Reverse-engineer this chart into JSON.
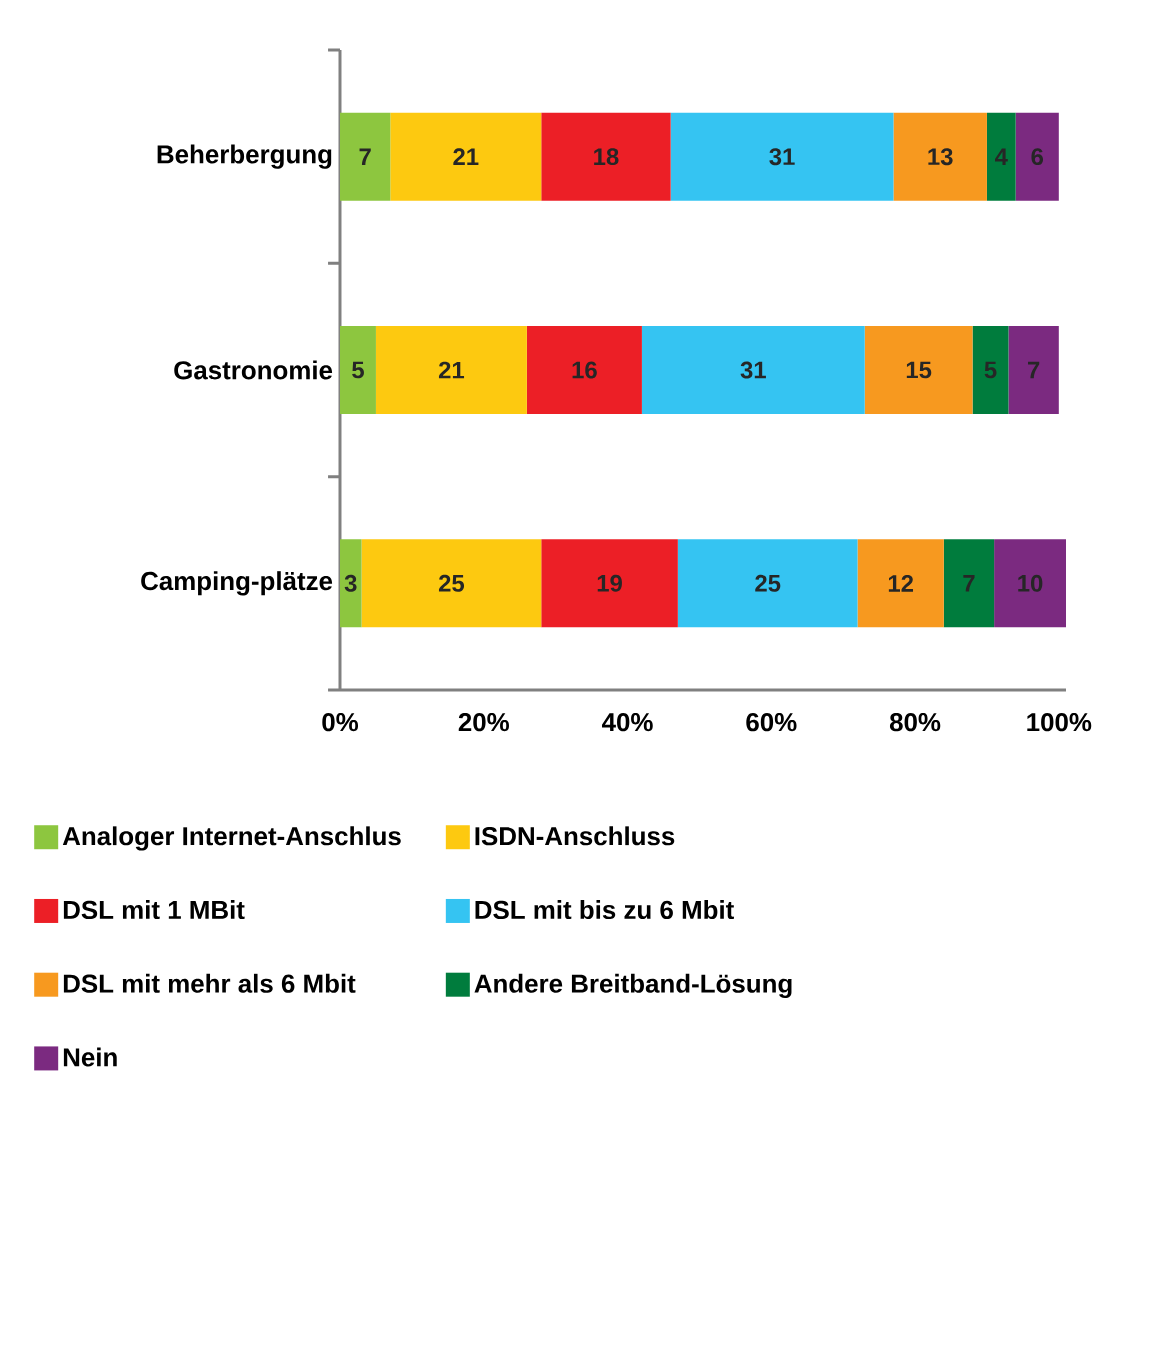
{
  "chart_data": {
    "type": "bar",
    "orientation": "horizontal",
    "stacked": true,
    "legend": "bottom",
    "categories": [
      "Beherbergung",
      "Gastronomie",
      "Camping-plätze"
    ],
    "xlim": [
      0,
      101
    ],
    "xticks": [
      {
        "value": 0,
        "label": "0%"
      },
      {
        "value": 20,
        "label": "20%"
      },
      {
        "value": 40,
        "label": "40%"
      },
      {
        "value": 60,
        "label": "60%"
      },
      {
        "value": 80,
        "label": "80%"
      },
      {
        "value": 100,
        "label": "100%"
      }
    ],
    "series": [
      {
        "name": "Analoger Internet-Anschlus",
        "color": "#8dc63f",
        "values": [
          7,
          5,
          3
        ],
        "value_labels": [
          "7",
          "5",
          "3"
        ]
      },
      {
        "name": "ISDN-Anschluss",
        "color": "#fdc910",
        "values": [
          21,
          21,
          25
        ],
        "value_labels": [
          "21",
          "21",
          "25"
        ]
      },
      {
        "name": "DSL mit 1 MBit",
        "color": "#ec1f26",
        "values": [
          18,
          16,
          19
        ],
        "value_labels": [
          "18",
          "16",
          "19"
        ]
      },
      {
        "name": "DSL mit bis zu 6 Mbit",
        "color": "#35c4f2",
        "values": [
          31,
          31,
          25
        ],
        "value_labels": [
          "31",
          "31",
          "25"
        ]
      },
      {
        "name": "DSL mit mehr als 6 Mbit",
        "color": "#f7991f",
        "values": [
          13,
          15,
          12
        ],
        "value_labels": [
          "13",
          "15",
          "12"
        ]
      },
      {
        "name": "Andere Breitband-Lösung",
        "color": "#007c3d",
        "values": [
          4,
          5,
          7
        ],
        "value_labels": [
          "4",
          "5",
          "7"
        ]
      },
      {
        "name": "Nein",
        "color": "#7b2a80",
        "values": [
          6,
          7,
          10
        ],
        "value_labels": [
          "6",
          "7",
          "10"
        ]
      }
    ]
  }
}
